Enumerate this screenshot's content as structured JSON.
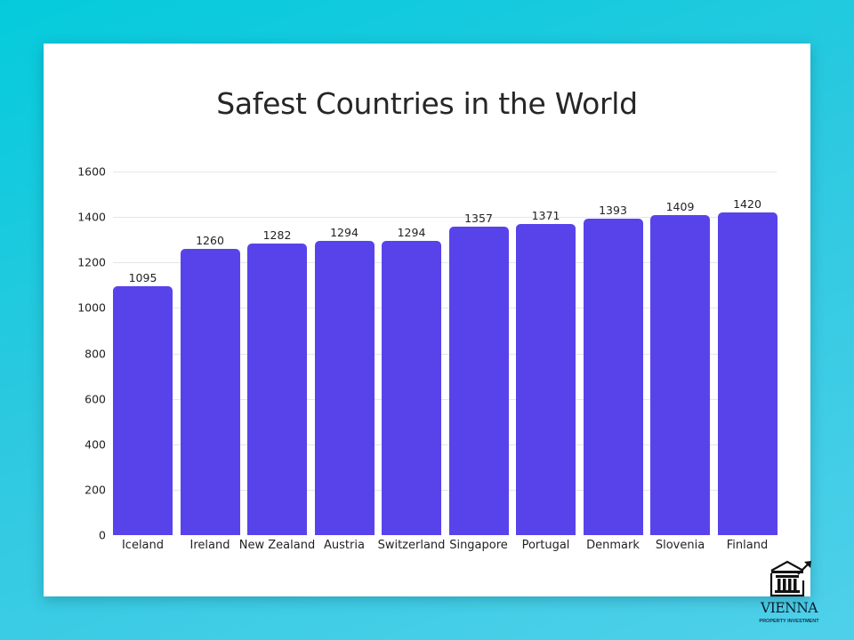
{
  "chart_data": {
    "type": "bar",
    "title": "Safest Countries in the World",
    "categories": [
      "Iceland",
      "Ireland",
      "New Zealand",
      "Austria",
      "Switzerland",
      "Singapore",
      "Portugal",
      "Denmark",
      "Slovenia",
      "Finland"
    ],
    "values": [
      1095,
      1260,
      1282,
      1294,
      1294,
      1357,
      1371,
      1393,
      1409,
      1420
    ],
    "xlabel": "",
    "ylabel": "",
    "ylim": [
      0,
      1600
    ],
    "yticks": [
      0,
      200,
      400,
      600,
      800,
      1000,
      1200,
      1400,
      1600
    ],
    "grid": true,
    "legend": "none",
    "data_labels": true,
    "bar_color": "#5843eb"
  },
  "page": {
    "background_colors": [
      "#04cbdc",
      "#4fd0ea"
    ]
  },
  "logo": {
    "word": "VIENNA",
    "subtitle": "PROPERTY INVESTMENT"
  }
}
